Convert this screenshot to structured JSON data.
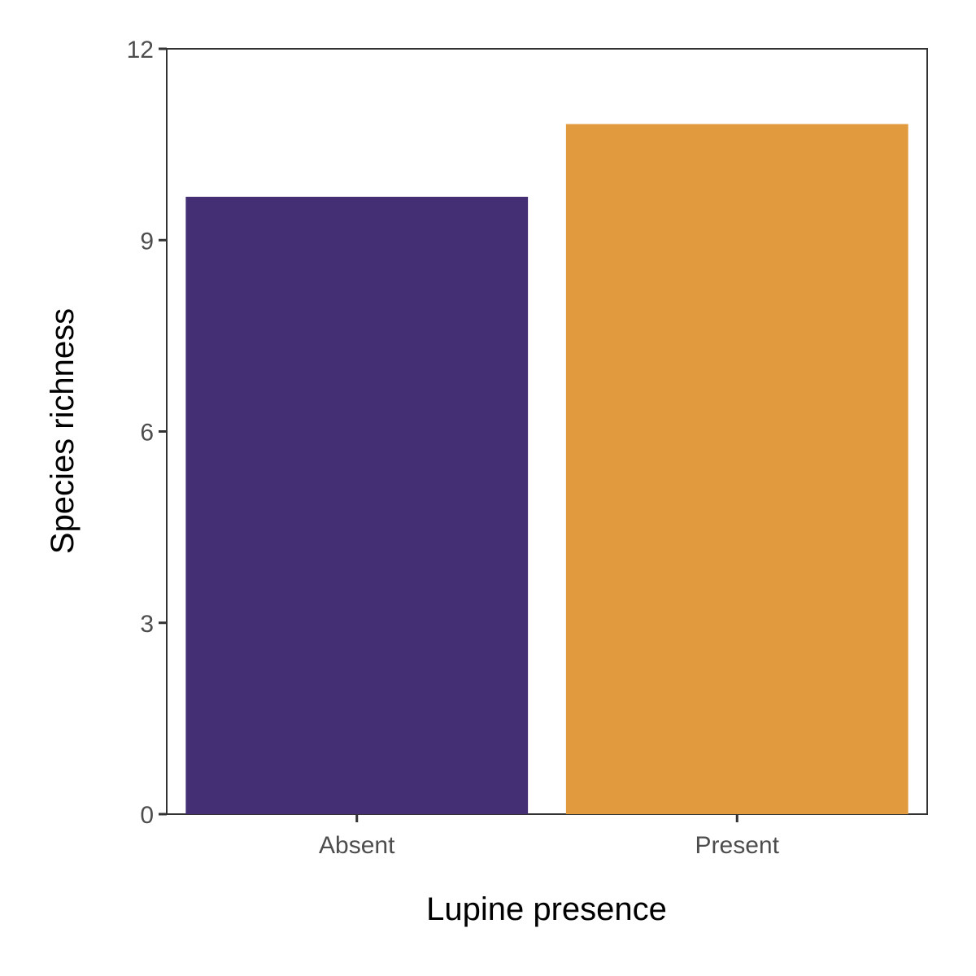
{
  "chart_data": {
    "type": "bar",
    "categories": [
      "Absent",
      "Present"
    ],
    "values": [
      9.68,
      10.82
    ],
    "colors": [
      "#452f74",
      "#e19a3e"
    ],
    "xlabel": "Lupine presence",
    "ylabel": "Species richness",
    "ylim": [
      0,
      12
    ],
    "yticks": [
      0,
      3,
      6,
      9,
      12
    ],
    "grid": false,
    "legend": "none"
  }
}
